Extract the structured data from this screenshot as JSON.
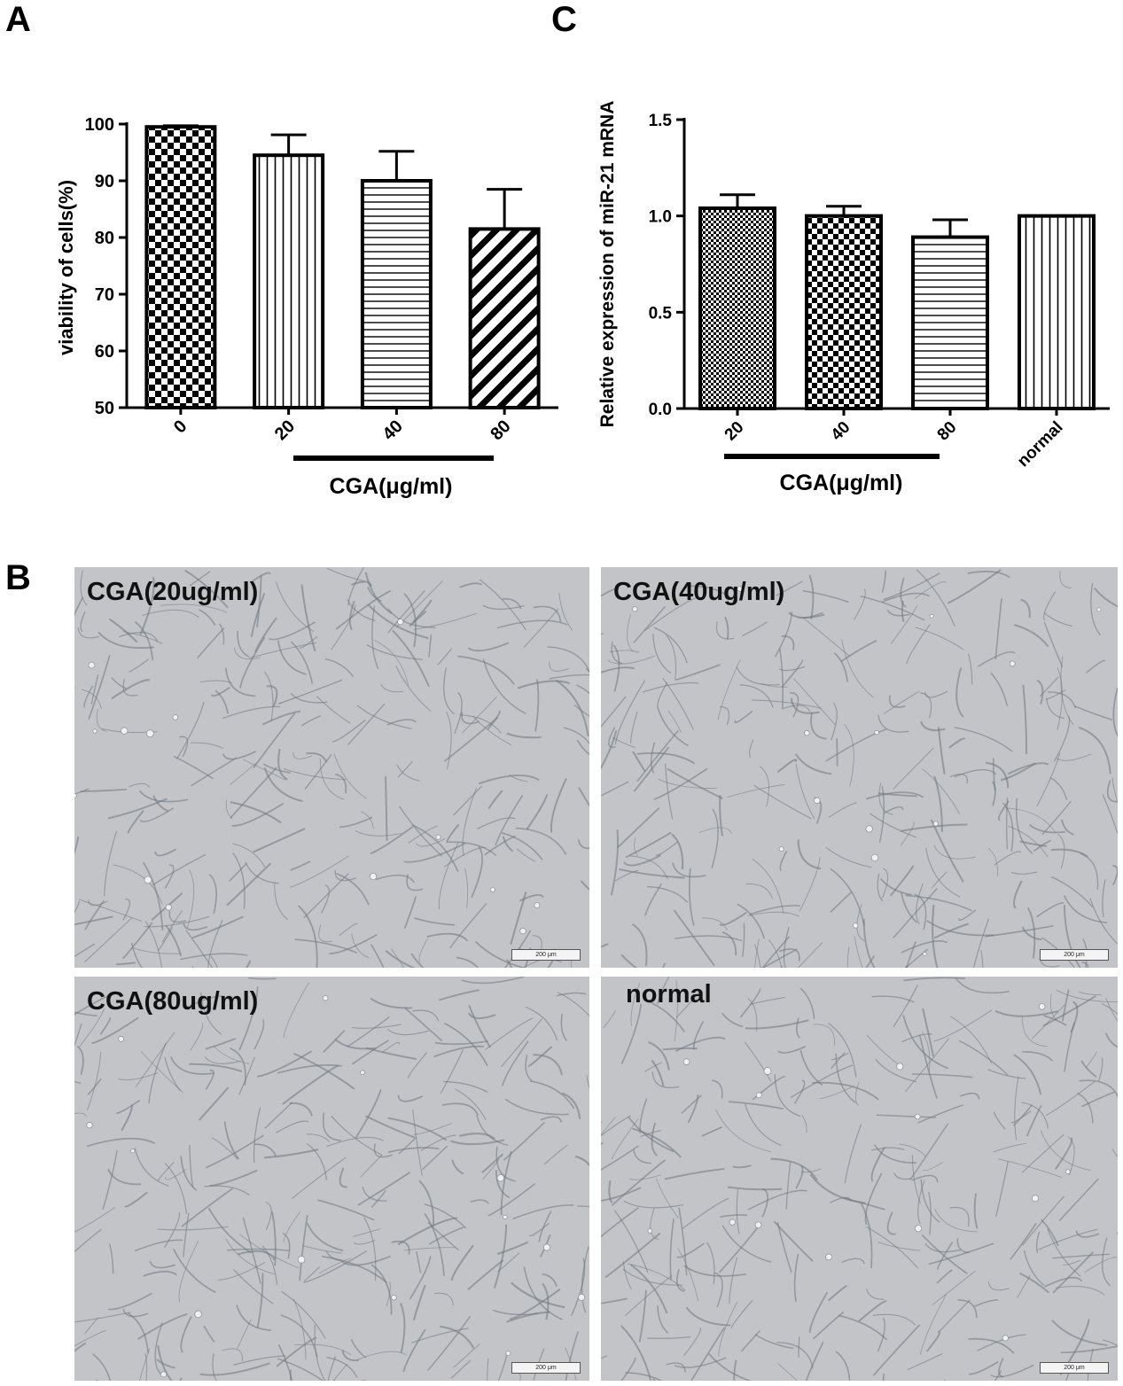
{
  "panels": {
    "a_letter": "A",
    "b_letter": "B",
    "c_letter": "C"
  },
  "chart_data": [
    {
      "panel": "A",
      "type": "bar",
      "categories": [
        "0",
        "20",
        "40",
        "80"
      ],
      "values": [
        99.5,
        94.5,
        90,
        81.5
      ],
      "errors": [
        0.2,
        3.6,
        5.2,
        7.0
      ],
      "patterns": [
        "checker",
        "vertical",
        "horizontal",
        "diagonal"
      ],
      "title": "",
      "xlabel": "CGA(μg/ml)",
      "ylabel": "viability of cells(%)",
      "ylim": [
        50,
        100
      ],
      "yticks": [
        "50",
        "60",
        "70",
        "80",
        "90",
        "100"
      ],
      "grid": false
    },
    {
      "panel": "C",
      "type": "bar",
      "categories": [
        "20",
        "40",
        "80",
        "normal"
      ],
      "values": [
        1.04,
        1.0,
        0.89,
        1.0
      ],
      "errors": [
        0.07,
        0.05,
        0.09,
        0.0
      ],
      "patterns": [
        "checker-fine",
        "checker",
        "horizontal",
        "vertical"
      ],
      "title": "",
      "xlabel": "CGA(μg/ml)",
      "ylabel": "Relative expression of miR-21 mRNA",
      "ylim": [
        0.0,
        1.5
      ],
      "yticks": [
        "0.0",
        "0.5",
        "1.0",
        "1.5"
      ],
      "grid": false
    }
  ],
  "micrographs": [
    {
      "label": "CGA(20ug/ml)",
      "scale": "200 μm"
    },
    {
      "label": "CGA(40ug/ml)",
      "scale": "200 μm"
    },
    {
      "label": "CGA(80ug/ml)",
      "scale": "200 μm"
    },
    {
      "label": "normal",
      "scale": "200 μm"
    }
  ],
  "colors": {
    "bar_stroke": "#000000",
    "micro_bg": "#c2c4c8",
    "cell_line": "#70767e"
  }
}
